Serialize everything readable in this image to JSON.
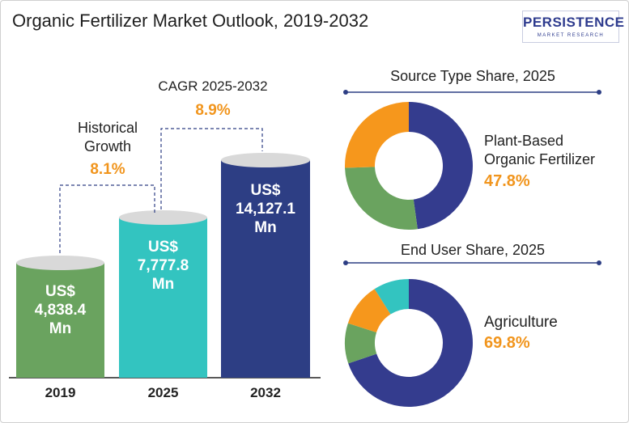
{
  "title": "Organic Fertilizer Market Outlook, 2019-2032",
  "logo": {
    "main": "PERSISTENCE",
    "sub": "MARKET RESEARCH"
  },
  "colors": {
    "bar_2019": "#6aa35f",
    "bar_2025": "#33c4c0",
    "bar_2032": "#2d3e84",
    "accent": "#f1951d",
    "donut_dark": "#343c8e",
    "donut_green": "#6aa35f",
    "donut_orange": "#f6971c",
    "donut_teal": "#33c4c0"
  },
  "chart_data": [
    {
      "type": "bar",
      "categories": [
        "2019",
        "2025",
        "2032"
      ],
      "values": [
        4838.4,
        7777.8,
        14127.1
      ],
      "value_labels": [
        [
          "US$",
          "4,838.4",
          "Mn"
        ],
        [
          "US$",
          "7,777.8",
          "Mn"
        ],
        [
          "US$",
          "14,127.1",
          "Mn"
        ]
      ],
      "annotations": [
        {
          "label_lines": [
            "Historical",
            "Growth"
          ],
          "value": "8.1%"
        },
        {
          "label_lines": [
            "CAGR 2025-2032"
          ],
          "value": "8.9%"
        }
      ]
    },
    {
      "type": "pie",
      "title": "Source Type Share, 2025",
      "highlight_label_lines": [
        "Plant-Based",
        "Organic Fertilizer"
      ],
      "highlight_value": "47.8%",
      "slices": [
        {
          "value": 47.8,
          "color": "#343c8e"
        },
        {
          "value": 26.7,
          "color": "#6aa35f"
        },
        {
          "value": 25.5,
          "color": "#f6971c"
        }
      ]
    },
    {
      "type": "pie",
      "title": "End User Share, 2025",
      "highlight_label_lines": [
        "Agriculture"
      ],
      "highlight_value": "69.8%",
      "slices": [
        {
          "value": 69.8,
          "color": "#343c8e"
        },
        {
          "value": 10.2,
          "color": "#6aa35f"
        },
        {
          "value": 11.0,
          "color": "#f6971c"
        },
        {
          "value": 9.0,
          "color": "#33c4c0"
        }
      ]
    }
  ]
}
